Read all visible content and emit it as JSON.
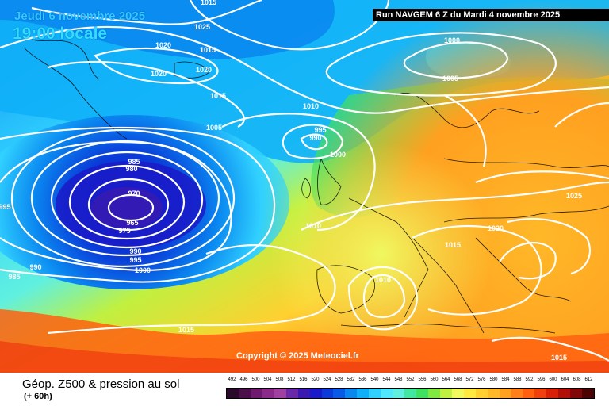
{
  "header": {
    "date": "Jeudi 6 novembre 2025",
    "time": "19:00 locale"
  },
  "run_info": "Run NAVGEM 6 Z du Mardi 4 novembre 2025",
  "copyright": "Copyright © 2025 Meteociel.fr",
  "footer": {
    "title": "Géop. Z500 & pression au sol",
    "subtitle": "(+ 60h)"
  },
  "legend": {
    "values": [
      "492",
      "496",
      "500",
      "504",
      "508",
      "512",
      "516",
      "520",
      "524",
      "528",
      "532",
      "536",
      "540",
      "544",
      "548",
      "552",
      "556",
      "560",
      "564",
      "568",
      "572",
      "576",
      "580",
      "584",
      "588",
      "592",
      "596",
      "600",
      "604",
      "608",
      "612"
    ],
    "colors": [
      "#2a0a2a",
      "#4b0f4b",
      "#6e1a6e",
      "#8a2a8a",
      "#a040a0",
      "#6a2aa8",
      "#3a1ab0",
      "#1a1ac8",
      "#0a3ad8",
      "#0a5ae8",
      "#0a88f0",
      "#10b0f8",
      "#30d0ff",
      "#50e8ff",
      "#60f0e0",
      "#40e8a0",
      "#40e060",
      "#80e840",
      "#c0f040",
      "#f0f860",
      "#ffe840",
      "#ffd030",
      "#ffb828",
      "#ffa020",
      "#ff8018",
      "#ff6010",
      "#f04010",
      "#d82008",
      "#b01008",
      "#800808",
      "#4a0404"
    ]
  },
  "isobars": [
    {
      "value": "1015",
      "pos": "top-left"
    },
    {
      "value": "1025",
      "pos": "north-atlantic"
    },
    {
      "value": "1020",
      "pos": "north-atlantic-west"
    },
    {
      "value": "1015",
      "pos": "greenland"
    },
    {
      "value": "1020",
      "pos": "greenland-south"
    },
    {
      "value": "1020",
      "pos": "iceland"
    },
    {
      "value": "1015",
      "pos": "iceland-south"
    },
    {
      "value": "1005",
      "pos": "atlantic-north"
    },
    {
      "value": "1000",
      "pos": "norwegian-sea"
    },
    {
      "value": "1005",
      "pos": "scandinavia-west"
    },
    {
      "value": "1010",
      "pos": "north-sea-west"
    },
    {
      "value": "995",
      "pos": "shetland"
    },
    {
      "value": "990",
      "pos": "shetland-low"
    },
    {
      "value": "1000",
      "pos": "scotland"
    },
    {
      "value": "985",
      "pos": "atlantic-low-north"
    },
    {
      "value": "980",
      "pos": "atlantic-low-north-2"
    },
    {
      "value": "970",
      "pos": "atlantic-low"
    },
    {
      "value": "965",
      "pos": "atlantic-low-center"
    },
    {
      "value": "975",
      "pos": "atlantic-low-south"
    },
    {
      "value": "995",
      "pos": "west-edge"
    },
    {
      "value": "990",
      "pos": "atlantic-south-west"
    },
    {
      "value": "985",
      "pos": "atlantic-far-south-west"
    },
    {
      "value": "990",
      "pos": "atlantic-south"
    },
    {
      "value": "995",
      "pos": "atlantic-south-2"
    },
    {
      "value": "1000",
      "pos": "atlantic-south-3"
    },
    {
      "value": "1010",
      "pos": "biscay"
    },
    {
      "value": "1010",
      "pos": "spain"
    },
    {
      "value": "1015",
      "pos": "atlantic-azores"
    },
    {
      "value": "1015",
      "pos": "italy"
    },
    {
      "value": "1020",
      "pos": "balkans"
    },
    {
      "value": "1025",
      "pos": "russia"
    },
    {
      "value": "1015",
      "pos": "libya"
    }
  ]
}
